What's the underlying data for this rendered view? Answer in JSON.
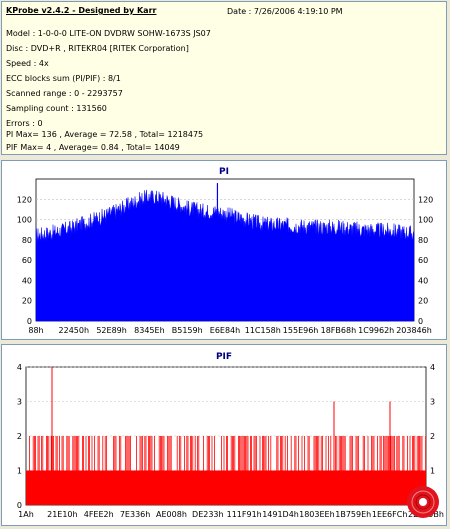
{
  "header": {
    "title": "KProbe v2.4.2 - Designed by Karr",
    "date_label": "Date : 7/26/2006 4:19:10 PM",
    "lines": [
      "Model : 1-0-0-0 LITE-ON DVDRW SOHW-1673S JS07",
      "Disc : DVD+R , RITEKR04 [RITEK Corporation]",
      "Speed : 4x",
      "ECC blocks sum (PI/PIF) : 8/1",
      "Scanned range : 0 - 2293757",
      "Sampling count : 131560",
      "Errors : 0",
      "PI Max= 136 , Average = 72.58 , Total= 1218475",
      "PIF Max= 4 , Average= 0.84 , Total= 14049"
    ]
  },
  "colors": {
    "pi_fill": "#0000ff",
    "pif_fill": "#ff0000",
    "grid": "#c0c0c0",
    "title": "#000080"
  },
  "chart_data": [
    {
      "type": "area",
      "title": "PI",
      "ylim": [
        0,
        140
      ],
      "yticks": [
        0,
        20,
        40,
        60,
        80,
        100,
        120
      ],
      "xtick_labels": [
        "88h",
        "22450h",
        "52E89h",
        "8345Eh",
        "B5159h",
        "E6E84h",
        "11C158h",
        "155E96h",
        "18FB68h",
        "1C9962h",
        "203846h"
      ],
      "profile": [
        [
          0,
          82
        ],
        [
          0.05,
          85
        ],
        [
          0.1,
          90
        ],
        [
          0.15,
          97
        ],
        [
          0.2,
          104
        ],
        [
          0.25,
          113
        ],
        [
          0.28,
          118
        ],
        [
          0.3,
          120
        ],
        [
          0.33,
          119
        ],
        [
          0.36,
          115
        ],
        [
          0.4,
          109
        ],
        [
          0.44,
          106
        ],
        [
          0.48,
          105
        ],
        [
          0.52,
          101
        ],
        [
          0.56,
          97
        ],
        [
          0.6,
          93
        ],
        [
          0.65,
          92
        ],
        [
          0.7,
          91
        ],
        [
          0.75,
          90
        ],
        [
          0.8,
          90
        ],
        [
          0.85,
          88
        ],
        [
          0.9,
          87
        ],
        [
          0.95,
          86
        ],
        [
          1,
          84
        ]
      ],
      "max": 136,
      "average": 72.58,
      "grid": true
    },
    {
      "type": "bar",
      "title": "PIF",
      "ylim": [
        0,
        4
      ],
      "yticks": [
        0,
        1,
        2,
        3,
        4
      ],
      "xtick_labels": [
        "1Ah",
        "21E10h",
        "4FEE2h",
        "7E336h",
        "AE008h",
        "DE233h",
        "111F91h",
        "1491D4h",
        "1803EEh",
        "1B759Eh",
        "1EE6FCh",
        "22589Bh"
      ],
      "spikes": [
        [
          0.065,
          4
        ],
        [
          0.77,
          3
        ],
        [
          0.91,
          3
        ]
      ],
      "baseline_value": 1,
      "max": 4,
      "average": 0.84,
      "grid": true
    }
  ]
}
